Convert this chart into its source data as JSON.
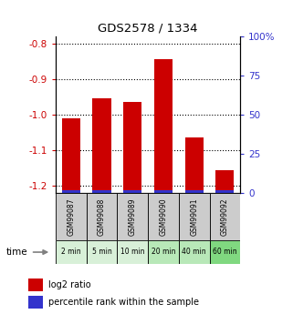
{
  "title": "GDS2578 / 1334",
  "categories": [
    "GSM99087",
    "GSM99088",
    "GSM99089",
    "GSM99090",
    "GSM99091",
    "GSM99092"
  ],
  "time_labels": [
    "2 min",
    "5 min",
    "10 min",
    "20 min",
    "40 min",
    "60 min"
  ],
  "log2_values": [
    -1.01,
    -0.955,
    -0.965,
    -0.845,
    -1.065,
    -1.155
  ],
  "percentile_values": [
    2,
    2,
    2,
    2,
    2,
    2
  ],
  "ylim_left": [
    -1.22,
    -0.78
  ],
  "ylim_right": [
    0,
    100
  ],
  "yticks_left": [
    -1.2,
    -1.1,
    -1.0,
    -0.9,
    -0.8
  ],
  "yticks_right": [
    0,
    25,
    50,
    75,
    100
  ],
  "ytick_labels_right": [
    "0",
    "25",
    "50",
    "75",
    "100%"
  ],
  "bar_color_red": "#cc0000",
  "bar_color_blue": "#3333cc",
  "bg_color": "#ffffff",
  "left_tick_color": "#cc0000",
  "right_tick_color": "#3333cc",
  "time_bg_colors": [
    "#d8f0d8",
    "#d8f0d8",
    "#d8f0d8",
    "#b8e8b8",
    "#b8e8b8",
    "#80d880"
  ],
  "gsm_bg_color": "#cccccc",
  "legend_red_label": "log2 ratio",
  "legend_blue_label": "percentile rank within the sample",
  "bar_width": 0.6
}
